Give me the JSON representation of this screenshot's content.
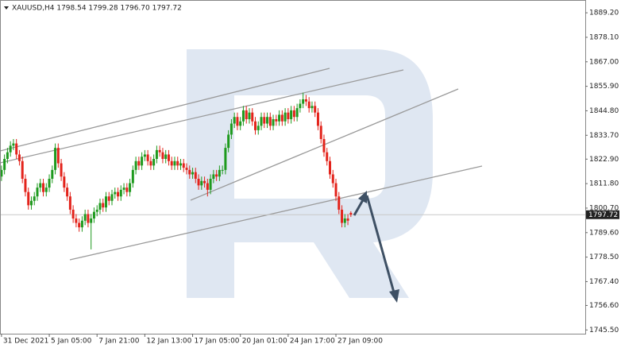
{
  "chart_data": {
    "type": "candlestick",
    "header": "XAUUSD,H4  1798.54 1799.28 1796.70 1797.72",
    "price_label": "1797.72",
    "up_color": "#1e9a1e",
    "down_color": "#e3231b",
    "xlim": [
      -0.5,
      195.5
    ],
    "xticks": [
      {
        "value": 0,
        "label": "31 Dec 2021"
      },
      {
        "value": 16,
        "label": "5 Jan 05:00"
      },
      {
        "value": 32,
        "label": "7 Jan 21:00"
      },
      {
        "value": 48,
        "label": "12 Jan 13:00"
      },
      {
        "value": 64,
        "label": "17 Jan 05:00"
      },
      {
        "value": 80,
        "label": "20 Jan 01:00"
      },
      {
        "value": 96,
        "label": "24 Jan 17:00"
      },
      {
        "value": 112,
        "label": "27 Jan 09:00"
      }
    ],
    "ylim": [
      1743.8,
      1893.2
    ],
    "yticks": [
      {
        "value": 1889.2,
        "label": "1889.20"
      },
      {
        "value": 1878.1,
        "label": "1878.10"
      },
      {
        "value": 1867,
        "label": "1867.00"
      },
      {
        "value": 1855.9,
        "label": "1855.90"
      },
      {
        "value": 1844.8,
        "label": "1844.80"
      },
      {
        "value": 1833.7,
        "label": "1833.70"
      },
      {
        "value": 1822.9,
        "label": "1822.90"
      },
      {
        "value": 1811.8,
        "label": "1811.80"
      },
      {
        "value": 1800.7,
        "label": "1800.70"
      },
      {
        "value": 1789.6,
        "label": "1789.60"
      },
      {
        "value": 1778.5,
        "label": "1778.50"
      },
      {
        "value": 1767.4,
        "label": "1767.40"
      },
      {
        "value": 1756.6,
        "label": "1756.60"
      },
      {
        "value": 1745.5,
        "label": "1745.50"
      }
    ],
    "open": [
      1815,
      1818,
      1823,
      1826,
      1829,
      1830,
      1825,
      1822,
      1814,
      1808,
      1802,
      1804,
      1806,
      1810,
      1812,
      1808,
      1810,
      1814,
      1818,
      1828,
      1821,
      1815,
      1810,
      1806,
      1800,
      1796,
      1794,
      1792,
      1795,
      1798,
      1794,
      1796,
      1799,
      1800,
      1803,
      1801,
      1806,
      1804,
      1807,
      1808,
      1806,
      1809,
      1810,
      1808,
      1812,
      1818,
      1822,
      1820,
      1824,
      1825,
      1822,
      1820,
      1823,
      1827,
      1826,
      1823,
      1825,
      1822,
      1820,
      1822,
      1820,
      1821,
      1819,
      1818,
      1816,
      1817,
      1814,
      1811,
      1813,
      1812,
      1809,
      1814,
      1816,
      1815,
      1818,
      1818,
      1828,
      1834,
      1839,
      1842,
      1838,
      1840,
      1845,
      1841,
      1844,
      1840,
      1836,
      1838,
      1842,
      1839,
      1842,
      1838,
      1841,
      1840,
      1843,
      1840,
      1844,
      1841,
      1845,
      1842,
      1846,
      1848,
      1850,
      1849,
      1846,
      1847,
      1844,
      1838,
      1832,
      1826,
      1822,
      1816,
      1812,
      1806,
      1800,
      1794,
      1796,
      1798.54
    ],
    "high": [
      1820,
      1825,
      1828,
      1831,
      1832,
      1832,
      1827,
      1824,
      1816,
      1810,
      1806,
      1808,
      1812,
      1814,
      1814,
      1812,
      1816,
      1820,
      1830,
      1830,
      1823,
      1817,
      1812,
      1808,
      1802,
      1798,
      1796,
      1797,
      1800,
      1800,
      1798,
      1801,
      1802,
      1805,
      1805,
      1808,
      1808,
      1809,
      1810,
      1810,
      1811,
      1812,
      1812,
      1814,
      1820,
      1824,
      1824,
      1826,
      1827,
      1827,
      1824,
      1825,
      1829,
      1829,
      1828,
      1827,
      1827,
      1824,
      1824,
      1824,
      1823,
      1823,
      1821,
      1820,
      1819,
      1819,
      1816,
      1815,
      1815,
      1814,
      1816,
      1818,
      1818,
      1820,
      1820,
      1830,
      1836,
      1841,
      1844,
      1844,
      1842,
      1847,
      1847,
      1846,
      1846,
      1842,
      1840,
      1844,
      1844,
      1844,
      1844,
      1843,
      1843,
      1845,
      1845,
      1846,
      1846,
      1847,
      1847,
      1848,
      1850,
      1853,
      1852,
      1851,
      1849,
      1849,
      1846,
      1840,
      1834,
      1828,
      1824,
      1818,
      1814,
      1808,
      1802,
      1798,
      1798,
      1799.28
    ],
    "low": [
      1813,
      1816,
      1821,
      1824,
      1827,
      1823,
      1820,
      1812,
      1806,
      1800,
      1800,
      1802,
      1804,
      1808,
      1806,
      1806,
      1808,
      1812,
      1816,
      1819,
      1813,
      1808,
      1804,
      1798,
      1794,
      1792,
      1790,
      1790,
      1793,
      1792,
      1782,
      1794,
      1797,
      1798,
      1799,
      1799,
      1802,
      1802,
      1805,
      1804,
      1804,
      1807,
      1806,
      1806,
      1810,
      1816,
      1818,
      1818,
      1822,
      1820,
      1818,
      1818,
      1821,
      1824,
      1821,
      1821,
      1820,
      1818,
      1818,
      1818,
      1818,
      1817,
      1816,
      1814,
      1814,
      1812,
      1809,
      1809,
      1810,
      1806,
      1807,
      1812,
      1813,
      1813,
      1816,
      1816,
      1826,
      1832,
      1837,
      1836,
      1836,
      1838,
      1839,
      1839,
      1838,
      1834,
      1834,
      1836,
      1837,
      1837,
      1836,
      1836,
      1838,
      1838,
      1838,
      1838,
      1839,
      1839,
      1840,
      1840,
      1844,
      1846,
      1847,
      1844,
      1844,
      1842,
      1836,
      1830,
      1824,
      1820,
      1814,
      1810,
      1804,
      1798,
      1792,
      1792,
      1793,
      1796.7
    ],
    "close": [
      1818,
      1823,
      1826,
      1829,
      1830,
      1825,
      1822,
      1814,
      1808,
      1802,
      1804,
      1806,
      1810,
      1812,
      1808,
      1810,
      1814,
      1818,
      1828,
      1821,
      1815,
      1810,
      1806,
      1800,
      1796,
      1794,
      1792,
      1795,
      1798,
      1794,
      1796,
      1799,
      1800,
      1803,
      1801,
      1806,
      1804,
      1807,
      1808,
      1806,
      1809,
      1810,
      1808,
      1812,
      1818,
      1822,
      1820,
      1824,
      1825,
      1822,
      1820,
      1823,
      1827,
      1826,
      1823,
      1825,
      1822,
      1820,
      1822,
      1820,
      1821,
      1819,
      1818,
      1816,
      1817,
      1814,
      1811,
      1813,
      1812,
      1809,
      1814,
      1816,
      1815,
      1818,
      1818,
      1828,
      1834,
      1839,
      1842,
      1838,
      1840,
      1845,
      1841,
      1844,
      1840,
      1836,
      1838,
      1842,
      1839,
      1842,
      1838,
      1841,
      1840,
      1843,
      1840,
      1844,
      1841,
      1845,
      1842,
      1846,
      1848,
      1850,
      1849,
      1846,
      1847,
      1844,
      1838,
      1832,
      1826,
      1822,
      1816,
      1812,
      1806,
      1800,
      1794,
      1796,
      1795,
      1797.72
    ]
  }
}
